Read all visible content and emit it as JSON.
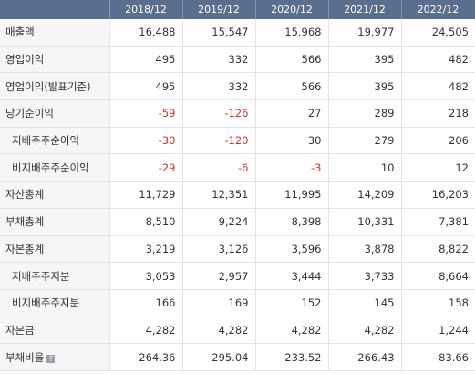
{
  "table": {
    "columns": [
      "2018/12",
      "2019/12",
      "2020/12",
      "2021/12",
      "2022/12"
    ],
    "rows": [
      {
        "label": "매출액",
        "sub": false,
        "values": [
          "16,488",
          "15,547",
          "15,968",
          "19,977",
          "24,505"
        ]
      },
      {
        "label": "영업이익",
        "sub": false,
        "values": [
          "495",
          "332",
          "566",
          "395",
          "482"
        ]
      },
      {
        "label": "영업이익(발표기준)",
        "sub": false,
        "values": [
          "495",
          "332",
          "566",
          "395",
          "482"
        ]
      },
      {
        "label": "당기순이익",
        "sub": false,
        "values": [
          "-59",
          "-126",
          "27",
          "289",
          "218"
        ]
      },
      {
        "label": "지배주주순이익",
        "sub": true,
        "values": [
          "-30",
          "-120",
          "30",
          "279",
          "206"
        ]
      },
      {
        "label": "비지배주주순이익",
        "sub": true,
        "values": [
          "-29",
          "-6",
          "-3",
          "10",
          "12"
        ]
      },
      {
        "label": "자산총계",
        "sub": false,
        "values": [
          "11,729",
          "12,351",
          "11,995",
          "14,209",
          "16,203"
        ]
      },
      {
        "label": "부채총계",
        "sub": false,
        "values": [
          "8,510",
          "9,224",
          "8,398",
          "10,331",
          "7,381"
        ]
      },
      {
        "label": "자본총계",
        "sub": false,
        "values": [
          "3,219",
          "3,126",
          "3,596",
          "3,878",
          "8,822"
        ]
      },
      {
        "label": "지배주주지분",
        "sub": true,
        "values": [
          "3,053",
          "2,957",
          "3,444",
          "3,733",
          "8,664"
        ]
      },
      {
        "label": "비지배주주지분",
        "sub": true,
        "values": [
          "166",
          "169",
          "152",
          "145",
          "158"
        ]
      },
      {
        "label": "자본금",
        "sub": false,
        "values": [
          "4,282",
          "4,282",
          "4,282",
          "4,282",
          "1,244"
        ]
      },
      {
        "label": "부채비율",
        "sub": false,
        "help": true,
        "values": [
          "264.36",
          "295.04",
          "233.52",
          "266.43",
          "83.66"
        ]
      }
    ]
  },
  "help_icon": {
    "glyph": "?"
  },
  "colors": {
    "header_bg": "#5b6e8e",
    "negative": "#d6302b",
    "label_bg": "#f6f6f6"
  }
}
